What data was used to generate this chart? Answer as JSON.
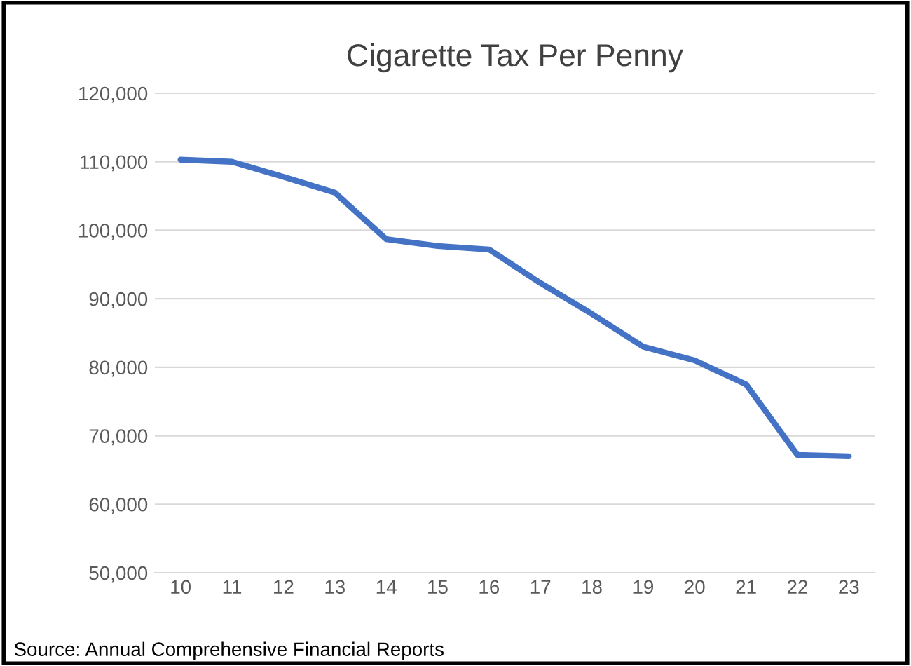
{
  "chart_data": {
    "type": "line",
    "title": "Cigarette Tax Per Penny",
    "categories": [
      "10",
      "11",
      "12",
      "13",
      "14",
      "15",
      "16",
      "17",
      "18",
      "19",
      "20",
      "21",
      "22",
      "23"
    ],
    "series": [
      {
        "color": "#4472c4",
        "values": [
          110300,
          110000,
          107800,
          105500,
          98700,
          97700,
          97200,
          92300,
          87800,
          83000,
          81000,
          77500,
          67200,
          67000
        ]
      }
    ],
    "ylim": [
      50000,
      120000
    ],
    "yticks": [
      {
        "value": 50000,
        "label": "50,000"
      },
      {
        "value": 60000,
        "label": "60,000"
      },
      {
        "value": 70000,
        "label": "70,000"
      },
      {
        "value": 80000,
        "label": "80,000"
      },
      {
        "value": 90000,
        "label": "90,000"
      },
      {
        "value": 100000,
        "label": "100,000"
      },
      {
        "value": 110000,
        "label": "110,000"
      },
      {
        "value": 120000,
        "label": "120,000"
      }
    ],
    "grid": "y",
    "marker": "none",
    "line_style": "solid",
    "annotations": [
      "Source: Annual Comprehensive Financial Reports"
    ]
  }
}
